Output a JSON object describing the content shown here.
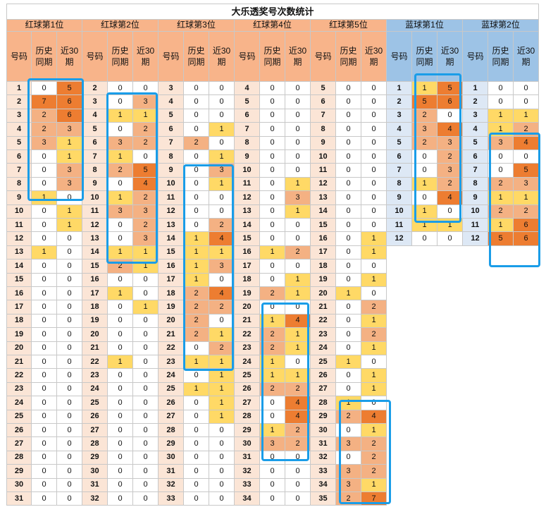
{
  "title": "大乐透奖号次数统计",
  "colors": {
    "red_header": "#f8b48a",
    "blue_header": "#9dc3e6",
    "red_num_bg": "#fbe5d6",
    "blue_num_bg": "#dde8f5",
    "level1": "#ffd966",
    "level2": "#f4b183",
    "level3": "#ed7d31",
    "highlight_border": "#1a9de8"
  },
  "groups": [
    {
      "label": "红球第1位",
      "type": "red",
      "rows": [
        [
          "1",
          "0",
          "5"
        ],
        [
          "2",
          "7",
          "6"
        ],
        [
          "3",
          "2",
          "6"
        ],
        [
          "4",
          "2",
          "3"
        ],
        [
          "5",
          "3",
          "1"
        ],
        [
          "6",
          "0",
          "1"
        ],
        [
          "7",
          "0",
          "3"
        ],
        [
          "8",
          "0",
          "3"
        ],
        [
          "9",
          "1",
          "0"
        ],
        [
          "10",
          "0",
          "1"
        ],
        [
          "11",
          "0",
          "1"
        ],
        [
          "12",
          "0",
          "0"
        ],
        [
          "13",
          "1",
          "0"
        ],
        [
          "14",
          "0",
          "0"
        ],
        [
          "15",
          "0",
          "0"
        ],
        [
          "16",
          "0",
          "0"
        ],
        [
          "17",
          "0",
          "0"
        ],
        [
          "18",
          "0",
          "0"
        ],
        [
          "19",
          "0",
          "0"
        ],
        [
          "20",
          "0",
          "0"
        ],
        [
          "21",
          "0",
          "0"
        ],
        [
          "22",
          "0",
          "0"
        ],
        [
          "23",
          "0",
          "0"
        ],
        [
          "24",
          "0",
          "0"
        ],
        [
          "25",
          "0",
          "0"
        ],
        [
          "26",
          "0",
          "0"
        ],
        [
          "27",
          "0",
          "0"
        ],
        [
          "28",
          "0",
          "0"
        ],
        [
          "29",
          "0",
          "0"
        ],
        [
          "30",
          "0",
          "0"
        ],
        [
          "31",
          "0",
          "0"
        ]
      ]
    },
    {
      "label": "红球第2位",
      "type": "red",
      "rows": [
        [
          "2",
          "0",
          "0"
        ],
        [
          "3",
          "0",
          "3"
        ],
        [
          "4",
          "1",
          "1"
        ],
        [
          "5",
          "0",
          "2"
        ],
        [
          "6",
          "3",
          "2"
        ],
        [
          "7",
          "1",
          "0"
        ],
        [
          "8",
          "2",
          "5"
        ],
        [
          "9",
          "0",
          "4"
        ],
        [
          "10",
          "1",
          "2"
        ],
        [
          "11",
          "3",
          "3"
        ],
        [
          "12",
          "0",
          "2"
        ],
        [
          "13",
          "0",
          "3"
        ],
        [
          "14",
          "1",
          "1"
        ],
        [
          "15",
          "2",
          "1"
        ],
        [
          "16",
          "0",
          "0"
        ],
        [
          "17",
          "1",
          "0"
        ],
        [
          "18",
          "0",
          "1"
        ],
        [
          "19",
          "0",
          "0"
        ],
        [
          "20",
          "0",
          "0"
        ],
        [
          "21",
          "0",
          "0"
        ],
        [
          "22",
          "1",
          "0"
        ],
        [
          "23",
          "0",
          "0"
        ],
        [
          "24",
          "0",
          "0"
        ],
        [
          "25",
          "0",
          "0"
        ],
        [
          "26",
          "0",
          "0"
        ],
        [
          "27",
          "0",
          "0"
        ],
        [
          "28",
          "0",
          "0"
        ],
        [
          "29",
          "0",
          "0"
        ],
        [
          "30",
          "0",
          "0"
        ],
        [
          "31",
          "0",
          "0"
        ],
        [
          "32",
          "0",
          "0"
        ]
      ]
    },
    {
      "label": "红球第3位",
      "type": "red",
      "rows": [
        [
          "3",
          "0",
          "0"
        ],
        [
          "4",
          "0",
          "0"
        ],
        [
          "5",
          "0",
          "0"
        ],
        [
          "6",
          "0",
          "1"
        ],
        [
          "7",
          "2",
          "0"
        ],
        [
          "8",
          "0",
          "1"
        ],
        [
          "9",
          "0",
          "3"
        ],
        [
          "10",
          "0",
          "1"
        ],
        [
          "11",
          "0",
          "0"
        ],
        [
          "12",
          "0",
          "0"
        ],
        [
          "13",
          "0",
          "2"
        ],
        [
          "14",
          "1",
          "4"
        ],
        [
          "15",
          "1",
          "1"
        ],
        [
          "16",
          "1",
          "3"
        ],
        [
          "17",
          "1",
          "0"
        ],
        [
          "18",
          "2",
          "4"
        ],
        [
          "19",
          "2",
          "2"
        ],
        [
          "20",
          "2",
          "0"
        ],
        [
          "21",
          "2",
          "1"
        ],
        [
          "22",
          "0",
          "2"
        ],
        [
          "23",
          "1",
          "1"
        ],
        [
          "24",
          "0",
          "1"
        ],
        [
          "25",
          "1",
          "1"
        ],
        [
          "26",
          "0",
          "1"
        ],
        [
          "27",
          "0",
          "1"
        ],
        [
          "28",
          "0",
          "0"
        ],
        [
          "29",
          "0",
          "0"
        ],
        [
          "30",
          "0",
          "0"
        ],
        [
          "31",
          "0",
          "0"
        ],
        [
          "32",
          "0",
          "0"
        ],
        [
          "33",
          "0",
          "0"
        ]
      ]
    },
    {
      "label": "红球第4位",
      "type": "red",
      "rows": [
        [
          "4",
          "0",
          "0"
        ],
        [
          "5",
          "0",
          "0"
        ],
        [
          "6",
          "0",
          "0"
        ],
        [
          "7",
          "0",
          "0"
        ],
        [
          "8",
          "0",
          "0"
        ],
        [
          "9",
          "0",
          "0"
        ],
        [
          "10",
          "0",
          "0"
        ],
        [
          "11",
          "0",
          "1"
        ],
        [
          "12",
          "0",
          "3"
        ],
        [
          "13",
          "0",
          "1"
        ],
        [
          "14",
          "0",
          "0"
        ],
        [
          "15",
          "0",
          "0"
        ],
        [
          "16",
          "1",
          "2"
        ],
        [
          "17",
          "0",
          "0"
        ],
        [
          "18",
          "0",
          "1"
        ],
        [
          "19",
          "2",
          "1"
        ],
        [
          "20",
          "0",
          "0"
        ],
        [
          "21",
          "1",
          "4"
        ],
        [
          "22",
          "2",
          "1"
        ],
        [
          "23",
          "2",
          "1"
        ],
        [
          "24",
          "1",
          "0"
        ],
        [
          "25",
          "1",
          "1"
        ],
        [
          "26",
          "2",
          "2"
        ],
        [
          "27",
          "0",
          "4"
        ],
        [
          "28",
          "0",
          "4"
        ],
        [
          "29",
          "1",
          "2"
        ],
        [
          "30",
          "3",
          "2"
        ],
        [
          "31",
          "0",
          "0"
        ],
        [
          "32",
          "0",
          "0"
        ],
        [
          "33",
          "0",
          "0"
        ],
        [
          "34",
          "0",
          "0"
        ]
      ]
    },
    {
      "label": "红球第5位",
      "type": "red",
      "rows": [
        [
          "5",
          "0",
          "0"
        ],
        [
          "6",
          "0",
          "0"
        ],
        [
          "7",
          "0",
          "0"
        ],
        [
          "8",
          "0",
          "0"
        ],
        [
          "9",
          "0",
          "0"
        ],
        [
          "10",
          "0",
          "0"
        ],
        [
          "11",
          "0",
          "0"
        ],
        [
          "12",
          "0",
          "0"
        ],
        [
          "13",
          "0",
          "0"
        ],
        [
          "14",
          "0",
          "0"
        ],
        [
          "15",
          "0",
          "0"
        ],
        [
          "16",
          "0",
          "1"
        ],
        [
          "17",
          "0",
          "1"
        ],
        [
          "18",
          "0",
          "0"
        ],
        [
          "19",
          "0",
          "1"
        ],
        [
          "20",
          "1",
          "0"
        ],
        [
          "21",
          "0",
          "2"
        ],
        [
          "22",
          "0",
          "1"
        ],
        [
          "23",
          "0",
          "2"
        ],
        [
          "24",
          "0",
          "1"
        ],
        [
          "25",
          "1",
          "0"
        ],
        [
          "26",
          "0",
          "1"
        ],
        [
          "27",
          "0",
          "1"
        ],
        [
          "28",
          "1",
          "0"
        ],
        [
          "29",
          "2",
          "4"
        ],
        [
          "30",
          "0",
          "1"
        ],
        [
          "31",
          "3",
          "2"
        ],
        [
          "32",
          "0",
          "2"
        ],
        [
          "33",
          "3",
          "2"
        ],
        [
          "34",
          "3",
          "1"
        ],
        [
          "35",
          "2",
          "7"
        ]
      ]
    },
    {
      "label": "蓝球第1位",
      "type": "blue",
      "rows": [
        [
          "1",
          "1",
          "5"
        ],
        [
          "2",
          "5",
          "6"
        ],
        [
          "3",
          "2",
          "0"
        ],
        [
          "4",
          "3",
          "4"
        ],
        [
          "5",
          "2",
          "3"
        ],
        [
          "6",
          "0",
          "2"
        ],
        [
          "7",
          "0",
          "3"
        ],
        [
          "8",
          "1",
          "2"
        ],
        [
          "9",
          "0",
          "4"
        ],
        [
          "10",
          "1",
          "0"
        ],
        [
          "11",
          "1",
          "1"
        ],
        [
          "12",
          "0",
          "0"
        ]
      ]
    },
    {
      "label": "蓝球第2位",
      "type": "blue",
      "rows": [
        [
          "1",
          "0",
          "0"
        ],
        [
          "2",
          "0",
          "0"
        ],
        [
          "3",
          "1",
          "1"
        ],
        [
          "4",
          "1",
          "2"
        ],
        [
          "5",
          "3",
          "4"
        ],
        [
          "6",
          "0",
          "0"
        ],
        [
          "7",
          "0",
          "5"
        ],
        [
          "8",
          "2",
          "3"
        ],
        [
          "9",
          "1",
          "1"
        ],
        [
          "10",
          "2",
          "2"
        ],
        [
          "11",
          "1",
          "6"
        ],
        [
          "12",
          "5",
          "6"
        ]
      ]
    }
  ],
  "subheaders": [
    "号码",
    "历史\n同期",
    "近30\n期"
  ]
}
